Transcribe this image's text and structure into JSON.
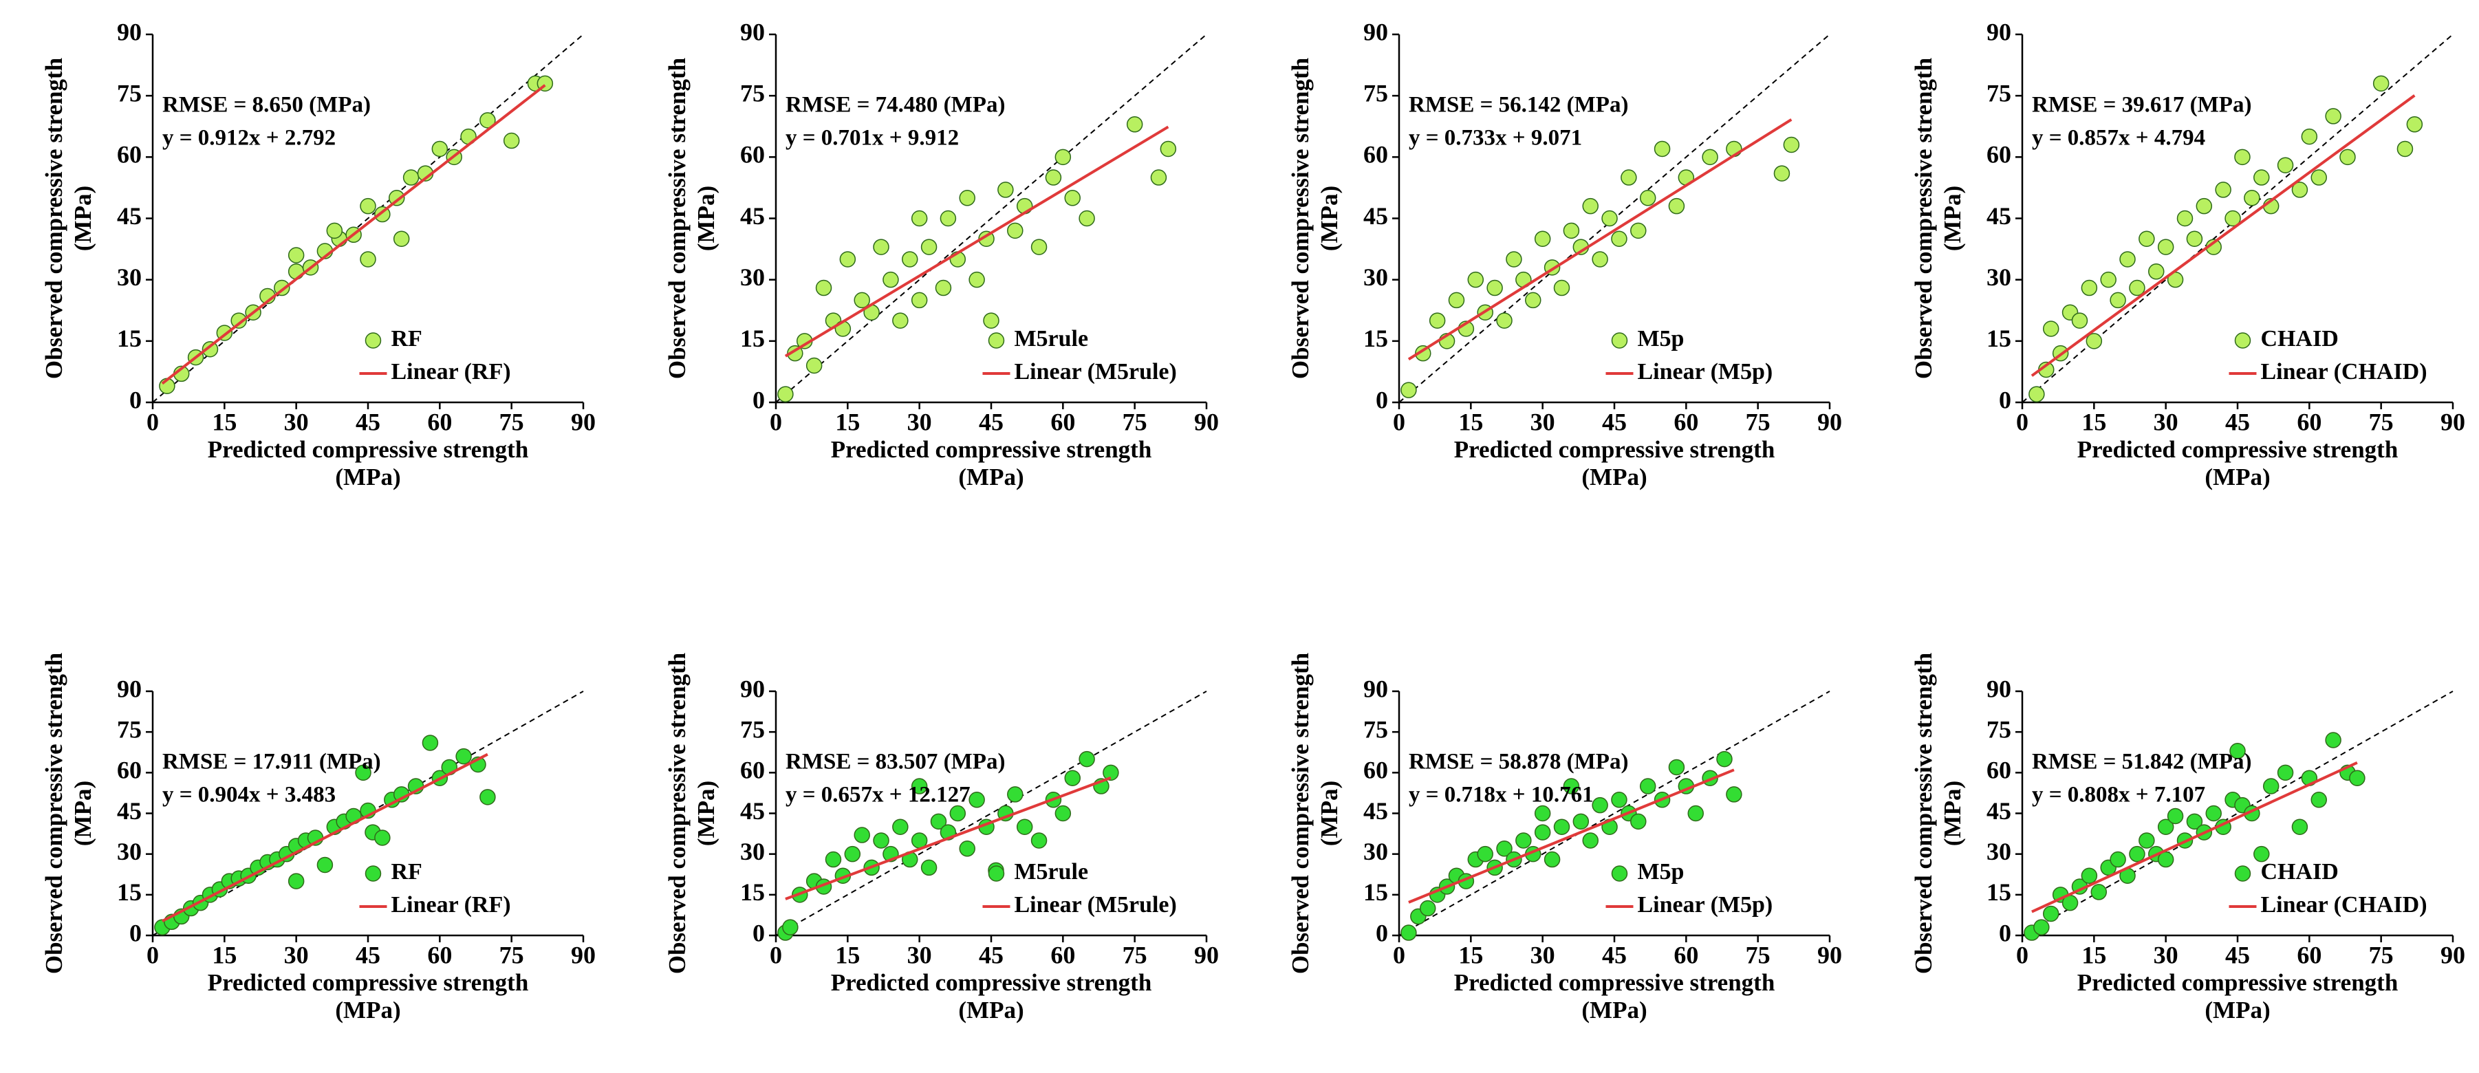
{
  "chart_data": [
    {
      "type": "scatter",
      "annotations": [
        "RMSE = 8.650 (MPa)",
        "y = 0.912x + 2.792"
      ],
      "xlabel": [
        "Predicted compressive strength",
        "(MPa)"
      ],
      "ylabel": [
        "Observed compressive strength",
        "(MPa)"
      ],
      "xlim": [
        0,
        90
      ],
      "ylim": [
        0,
        90
      ],
      "xticks": [
        0,
        15,
        30,
        45,
        60,
        75,
        90
      ],
      "yticks": [
        0,
        15,
        30,
        45,
        60,
        75,
        90
      ],
      "series": [
        {
          "name": "RF",
          "type": "scatter",
          "color": "#b8f060",
          "x": [
            3,
            6,
            9,
            12,
            15,
            18,
            21,
            24,
            27,
            30,
            33,
            36,
            39,
            42,
            45,
            48,
            51,
            54,
            57,
            60,
            63,
            66,
            70,
            75,
            80,
            82,
            45,
            52,
            30,
            38
          ],
          "values": [
            4,
            7,
            11,
            13,
            17,
            20,
            22,
            26,
            28,
            32,
            33,
            37,
            40,
            41,
            48,
            46,
            50,
            55,
            56,
            62,
            60,
            65,
            69,
            64,
            78,
            78,
            35,
            40,
            36,
            42
          ]
        },
        {
          "name": "Linear (RF)",
          "type": "line",
          "color": "#e03a3a",
          "x": [
            2,
            82
          ],
          "values": [
            4.62,
            77.58
          ]
        }
      ]
    },
    {
      "type": "scatter",
      "annotations": [
        "RMSE = 74.480 (MPa)",
        "y = 0.701x + 9.912"
      ],
      "xlabel": [
        "Predicted compressive strength",
        "(MPa)"
      ],
      "ylabel": [
        "Observed compressive strength",
        "(MPa)"
      ],
      "xlim": [
        0,
        90
      ],
      "ylim": [
        0,
        90
      ],
      "xticks": [
        0,
        15,
        30,
        45,
        60,
        75,
        90
      ],
      "yticks": [
        0,
        15,
        30,
        45,
        60,
        75,
        90
      ],
      "series": [
        {
          "name": "M5rule",
          "type": "scatter",
          "color": "#b8f060",
          "x": [
            2,
            4,
            6,
            8,
            10,
            12,
            14,
            15,
            18,
            20,
            22,
            24,
            26,
            28,
            30,
            30,
            32,
            35,
            36,
            38,
            40,
            42,
            44,
            45,
            48,
            50,
            52,
            55,
            58,
            60,
            62,
            65,
            75,
            80,
            82
          ],
          "values": [
            2,
            12,
            15,
            9,
            28,
            20,
            18,
            35,
            25,
            22,
            38,
            30,
            20,
            35,
            45,
            25,
            38,
            28,
            45,
            35,
            50,
            30,
            40,
            20,
            52,
            42,
            48,
            38,
            55,
            60,
            50,
            45,
            68,
            55,
            62
          ]
        },
        {
          "name": "Linear (M5rule)",
          "type": "line",
          "color": "#e03a3a",
          "x": [
            2,
            82
          ],
          "values": [
            11.31,
            67.39
          ]
        }
      ]
    },
    {
      "type": "scatter",
      "annotations": [
        "RMSE = 56.142 (MPa)",
        "y = 0.733x + 9.071"
      ],
      "xlabel": [
        "Predicted compressive strength",
        "(MPa)"
      ],
      "ylabel": [
        "Observed compressive strength",
        "(MPa)"
      ],
      "xlim": [
        0,
        90
      ],
      "ylim": [
        0,
        90
      ],
      "xticks": [
        0,
        15,
        30,
        45,
        60,
        75,
        90
      ],
      "yticks": [
        0,
        15,
        30,
        45,
        60,
        75,
        90
      ],
      "series": [
        {
          "name": "M5p",
          "type": "scatter",
          "color": "#b8f060",
          "x": [
            2,
            5,
            8,
            10,
            12,
            14,
            16,
            18,
            20,
            22,
            24,
            26,
            28,
            30,
            32,
            34,
            36,
            38,
            40,
            42,
            44,
            46,
            48,
            50,
            52,
            55,
            58,
            60,
            65,
            70,
            80,
            82
          ],
          "values": [
            3,
            12,
            20,
            15,
            25,
            18,
            30,
            22,
            28,
            20,
            35,
            30,
            25,
            40,
            33,
            28,
            42,
            38,
            48,
            35,
            45,
            40,
            55,
            42,
            50,
            62,
            48,
            55,
            60,
            62,
            56,
            63
          ]
        },
        {
          "name": "Linear (M5p)",
          "type": "line",
          "color": "#e03a3a",
          "x": [
            2,
            82
          ],
          "values": [
            10.54,
            69.18
          ]
        }
      ]
    },
    {
      "type": "scatter",
      "annotations": [
        "RMSE = 39.617 (MPa)",
        "y = 0.857x + 4.794"
      ],
      "xlabel": [
        "Predicted compressive strength",
        "(MPa)"
      ],
      "ylabel": [
        "Observed compressive strength",
        "(MPa)"
      ],
      "xlim": [
        0,
        90
      ],
      "ylim": [
        0,
        90
      ],
      "xticks": [
        0,
        15,
        30,
        45,
        60,
        75,
        90
      ],
      "yticks": [
        0,
        15,
        30,
        45,
        60,
        75,
        90
      ],
      "series": [
        {
          "name": "CHAID",
          "type": "scatter",
          "color": "#b8f060",
          "x": [
            3,
            5,
            6,
            8,
            10,
            12,
            14,
            15,
            18,
            20,
            22,
            24,
            26,
            28,
            30,
            32,
            34,
            36,
            38,
            40,
            42,
            44,
            46,
            48,
            50,
            52,
            55,
            58,
            60,
            62,
            65,
            68,
            75,
            80,
            82
          ],
          "values": [
            2,
            8,
            18,
            12,
            22,
            20,
            28,
            15,
            30,
            25,
            35,
            28,
            40,
            32,
            38,
            30,
            45,
            40,
            48,
            38,
            52,
            45,
            60,
            50,
            55,
            48,
            58,
            52,
            65,
            55,
            70,
            60,
            78,
            62,
            68
          ]
        },
        {
          "name": "Linear (CHAID)",
          "type": "line",
          "color": "#e03a3a",
          "x": [
            2,
            82
          ],
          "values": [
            6.51,
            75.07
          ]
        }
      ]
    },
    {
      "type": "scatter",
      "annotations": [
        "RMSE = 17.911 (MPa)",
        "y = 0.904x + 3.483"
      ],
      "xlabel": [
        "Predicted compressive strength",
        "(MPa)"
      ],
      "ylabel": [
        "Observed compressive strength",
        "(MPa)"
      ],
      "xlim": [
        0,
        90
      ],
      "ylim": [
        0,
        90
      ],
      "xticks": [
        0,
        15,
        30,
        45,
        60,
        75,
        90
      ],
      "yticks": [
        0,
        15,
        30,
        45,
        60,
        75,
        90
      ],
      "series": [
        {
          "name": "RF",
          "type": "scatter",
          "color": "#33dd33",
          "x": [
            2,
            4,
            6,
            8,
            10,
            12,
            14,
            16,
            18,
            20,
            22,
            24,
            26,
            28,
            30,
            30,
            32,
            34,
            36,
            38,
            40,
            42,
            44,
            45,
            46,
            48,
            50,
            52,
            55,
            58,
            60,
            62,
            65,
            68,
            70
          ],
          "values": [
            3,
            5,
            7,
            10,
            12,
            15,
            17,
            20,
            21,
            22,
            25,
            27,
            28,
            30,
            20,
            33,
            35,
            36,
            26,
            40,
            42,
            44,
            60,
            46,
            38,
            36,
            50,
            52,
            55,
            71,
            58,
            62,
            66,
            63,
            51
          ]
        },
        {
          "name": "Linear (RF)",
          "type": "line",
          "color": "#e03a3a",
          "x": [
            2,
            70
          ],
          "values": [
            5.29,
            66.76
          ]
        }
      ]
    },
    {
      "type": "scatter",
      "annotations": [
        "RMSE = 83.507 (MPa)",
        "y = 0.657x + 12.127"
      ],
      "xlabel": [
        "Predicted compressive strength",
        "(MPa)"
      ],
      "ylabel": [
        "Observed compressive strength",
        "(MPa)"
      ],
      "xlim": [
        0,
        90
      ],
      "ylim": [
        0,
        90
      ],
      "xticks": [
        0,
        15,
        30,
        45,
        60,
        75,
        90
      ],
      "yticks": [
        0,
        15,
        30,
        45,
        60,
        75,
        90
      ],
      "series": [
        {
          "name": "M5rule",
          "type": "scatter",
          "color": "#33dd33",
          "x": [
            2,
            3,
            5,
            8,
            10,
            12,
            14,
            16,
            18,
            20,
            22,
            24,
            26,
            28,
            30,
            30,
            32,
            34,
            36,
            38,
            40,
            42,
            44,
            46,
            48,
            50,
            52,
            55,
            58,
            60,
            62,
            65,
            68,
            70
          ],
          "values": [
            1,
            3,
            15,
            20,
            18,
            28,
            22,
            30,
            37,
            25,
            35,
            30,
            40,
            28,
            55,
            35,
            25,
            42,
            38,
            45,
            32,
            50,
            40,
            24,
            45,
            52,
            40,
            35,
            50,
            45,
            58,
            65,
            55,
            60
          ]
        },
        {
          "name": "Linear (M5rule)",
          "type": "line",
          "color": "#e03a3a",
          "x": [
            2,
            70
          ],
          "values": [
            13.44,
            58.12
          ]
        }
      ]
    },
    {
      "type": "scatter",
      "annotations": [
        "RMSE = 58.878 (MPa)",
        "y = 0.718x + 10.761"
      ],
      "xlabel": [
        "Predicted compressive strength",
        "(MPa)"
      ],
      "ylabel": [
        "Observed compressive strength",
        "(MPa)"
      ],
      "xlim": [
        0,
        90
      ],
      "ylim": [
        0,
        90
      ],
      "xticks": [
        0,
        15,
        30,
        45,
        60,
        75,
        90
      ],
      "yticks": [
        0,
        15,
        30,
        45,
        60,
        75,
        90
      ],
      "series": [
        {
          "name": "M5p",
          "type": "scatter",
          "color": "#33dd33",
          "x": [
            2,
            4,
            6,
            8,
            10,
            12,
            14,
            16,
            18,
            20,
            22,
            24,
            26,
            28,
            30,
            30,
            32,
            34,
            36,
            38,
            40,
            42,
            44,
            46,
            48,
            50,
            52,
            55,
            58,
            60,
            62,
            65,
            68,
            70
          ],
          "values": [
            1,
            7,
            10,
            15,
            18,
            22,
            20,
            28,
            30,
            25,
            32,
            28,
            35,
            30,
            45,
            38,
            28,
            40,
            55,
            42,
            35,
            48,
            40,
            50,
            45,
            42,
            55,
            50,
            62,
            55,
            45,
            58,
            65,
            52
          ]
        },
        {
          "name": "Linear (M5p)",
          "type": "line",
          "color": "#e03a3a",
          "x": [
            2,
            70
          ],
          "values": [
            12.2,
            61.02
          ]
        }
      ]
    },
    {
      "type": "scatter",
      "annotations": [
        "RMSE = 51.842 (MPa)",
        "y = 0.808x + 7.107"
      ],
      "xlabel": [
        "Predicted compressive strength",
        "(MPa)"
      ],
      "ylabel": [
        "Observed compressive strength",
        "(MPa)"
      ],
      "xlim": [
        0,
        90
      ],
      "ylim": [
        0,
        90
      ],
      "xticks": [
        0,
        15,
        30,
        45,
        60,
        75,
        90
      ],
      "yticks": [
        0,
        15,
        30,
        45,
        60,
        75,
        90
      ],
      "series": [
        {
          "name": "CHAID",
          "type": "scatter",
          "color": "#33dd33",
          "x": [
            2,
            4,
            6,
            8,
            10,
            12,
            14,
            16,
            18,
            20,
            22,
            24,
            26,
            28,
            30,
            30,
            32,
            34,
            36,
            38,
            40,
            42,
            44,
            45,
            46,
            48,
            50,
            52,
            55,
            58,
            60,
            62,
            65,
            68,
            70
          ],
          "values": [
            1,
            3,
            8,
            15,
            12,
            18,
            22,
            16,
            25,
            28,
            22,
            30,
            35,
            30,
            40,
            28,
            44,
            35,
            42,
            38,
            45,
            40,
            50,
            68,
            48,
            45,
            30,
            55,
            60,
            40,
            58,
            50,
            72,
            60,
            58
          ]
        },
        {
          "name": "Linear (CHAID)",
          "type": "line",
          "color": "#e03a3a",
          "x": [
            2,
            70
          ],
          "values": [
            8.72,
            63.67
          ]
        }
      ]
    }
  ]
}
